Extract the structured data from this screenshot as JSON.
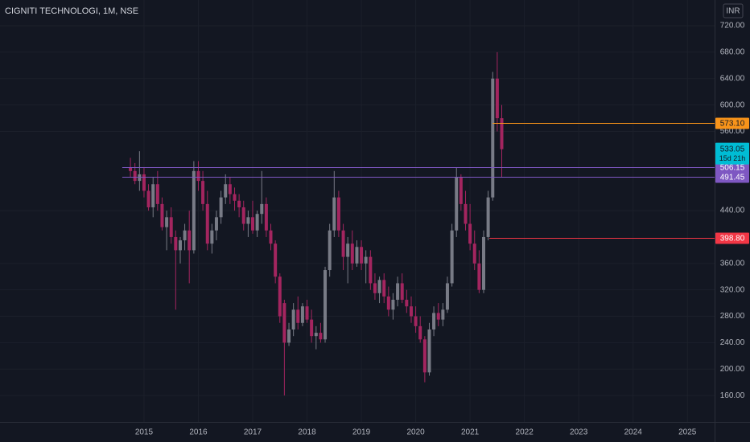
{
  "chart_data": {
    "type": "candlestick",
    "title": "CIGNITI TECHNOLOGI, 1M, NSE",
    "currency": "INR",
    "up_color": "#787b86",
    "down_color": "#a3255f",
    "grid": true,
    "x": [
      2014.75,
      2014.833,
      2014.917,
      2015,
      2015.083,
      2015.167,
      2015.25,
      2015.333,
      2015.417,
      2015.5,
      2015.583,
      2015.667,
      2015.75,
      2015.833,
      2015.917,
      2016,
      2016.083,
      2016.167,
      2016.25,
      2016.333,
      2016.417,
      2016.5,
      2016.583,
      2016.667,
      2016.75,
      2016.833,
      2016.917,
      2017,
      2017.083,
      2017.167,
      2017.25,
      2017.333,
      2017.417,
      2017.5,
      2017.583,
      2017.667,
      2017.75,
      2017.833,
      2017.917,
      2018,
      2018.083,
      2018.167,
      2018.25,
      2018.333,
      2018.417,
      2018.5,
      2018.583,
      2018.667,
      2018.75,
      2018.833,
      2018.917,
      2019,
      2019.083,
      2019.167,
      2019.25,
      2019.333,
      2019.417,
      2019.5,
      2019.583,
      2019.667,
      2019.75,
      2019.833,
      2019.917,
      2020,
      2020.083,
      2020.167,
      2020.25,
      2020.333,
      2020.417,
      2020.5,
      2020.583,
      2020.667,
      2020.75,
      2020.833,
      2020.917,
      2021,
      2021.083,
      2021.167,
      2021.25,
      2021.333,
      2021.417,
      2021.5,
      2021.583
    ],
    "open": [
      505,
      500,
      485,
      495,
      470,
      445,
      480,
      450,
      415,
      430,
      400,
      380,
      395,
      410,
      380,
      500,
      485,
      450,
      390,
      410,
      430,
      460,
      480,
      465,
      455,
      445,
      420,
      430,
      410,
      435,
      450,
      410,
      390,
      340,
      300,
      240,
      260,
      290,
      270,
      295,
      275,
      250,
      255,
      245,
      350,
      410,
      460,
      410,
      370,
      390,
      360,
      385,
      360,
      370,
      330,
      315,
      335,
      310,
      290,
      305,
      330,
      305,
      295,
      280,
      265,
      245,
      195,
      260,
      285,
      275,
      290,
      330,
      410,
      490,
      450,
      420,
      390,
      360,
      320,
      400,
      460,
      640,
      580
    ],
    "high": [
      520,
      512,
      530,
      505,
      480,
      490,
      500,
      460,
      440,
      445,
      410,
      400,
      420,
      440,
      515,
      515,
      500,
      470,
      420,
      440,
      470,
      495,
      490,
      475,
      465,
      455,
      440,
      455,
      440,
      500,
      460,
      420,
      395,
      345,
      305,
      270,
      300,
      310,
      300,
      305,
      290,
      265,
      270,
      355,
      420,
      500,
      470,
      420,
      400,
      410,
      395,
      395,
      380,
      380,
      345,
      340,
      345,
      325,
      315,
      340,
      345,
      320,
      310,
      295,
      280,
      250,
      270,
      295,
      300,
      300,
      340,
      420,
      505,
      495,
      470,
      450,
      410,
      380,
      410,
      470,
      650,
      680,
      600
    ],
    "low": [
      490,
      480,
      470,
      460,
      440,
      430,
      440,
      410,
      380,
      390,
      290,
      360,
      380,
      330,
      375,
      470,
      440,
      380,
      375,
      395,
      420,
      450,
      450,
      440,
      430,
      410,
      400,
      405,
      400,
      420,
      400,
      380,
      330,
      270,
      160,
      235,
      250,
      260,
      265,
      270,
      240,
      230,
      240,
      240,
      340,
      400,
      400,
      350,
      330,
      350,
      355,
      350,
      330,
      320,
      305,
      300,
      300,
      280,
      275,
      295,
      300,
      285,
      270,
      255,
      240,
      180,
      190,
      250,
      265,
      265,
      285,
      325,
      400,
      440,
      410,
      380,
      350,
      315,
      315,
      395,
      455,
      560,
      490
    ],
    "close": [
      500,
      485,
      495,
      470,
      445,
      480,
      450,
      415,
      430,
      400,
      380,
      395,
      410,
      380,
      500,
      485,
      450,
      390,
      410,
      430,
      460,
      480,
      465,
      455,
      445,
      420,
      430,
      410,
      435,
      450,
      410,
      390,
      340,
      280,
      240,
      260,
      290,
      270,
      295,
      275,
      250,
      255,
      245,
      350,
      410,
      460,
      410,
      370,
      390,
      360,
      385,
      360,
      370,
      330,
      315,
      335,
      310,
      290,
      305,
      330,
      305,
      295,
      280,
      265,
      245,
      195,
      260,
      285,
      275,
      290,
      330,
      410,
      490,
      450,
      420,
      390,
      360,
      320,
      400,
      460,
      640,
      580,
      533.05
    ],
    "xlim": [
      2012.35,
      2025.5
    ],
    "xticks": [
      2015,
      2016,
      2017,
      2018,
      2019,
      2020,
      2021,
      2022,
      2023,
      2024,
      2025
    ],
    "ylim": [
      120,
      759
    ],
    "yticks": [
      {
        "value": 160,
        "label": "160.00"
      },
      {
        "value": 200,
        "label": "200.00"
      },
      {
        "value": 240,
        "label": "240.00"
      },
      {
        "value": 280,
        "label": "280.00"
      },
      {
        "value": 320,
        "label": "320.00"
      },
      {
        "value": 360,
        "label": "360.00"
      },
      {
        "value": 440,
        "label": "440.00"
      },
      {
        "value": 560,
        "label": "560.00"
      },
      {
        "value": 600,
        "label": "600.00"
      },
      {
        "value": 640,
        "label": "640.00"
      },
      {
        "value": 680,
        "label": "680.00"
      },
      {
        "value": 720,
        "label": "720.00"
      }
    ],
    "levels": [
      {
        "value": 573.1,
        "label": "573.10",
        "color": "#f7931a",
        "x_start": 2021.415
      },
      {
        "value": 506.15,
        "label": "506.15",
        "color": "#7e57c2",
        "x_start": 2014.6
      },
      {
        "value": 491.45,
        "label": "491.45",
        "color": "#7e57c2",
        "x_start": 2014.6
      },
      {
        "value": 398.8,
        "label": "398.80",
        "color": "#f23645",
        "x_start": 2021.356
      }
    ],
    "last_price": {
      "value": 533.05,
      "label": "533.05",
      "color": "#00bcd4"
    },
    "countdown": "15d 21h"
  }
}
